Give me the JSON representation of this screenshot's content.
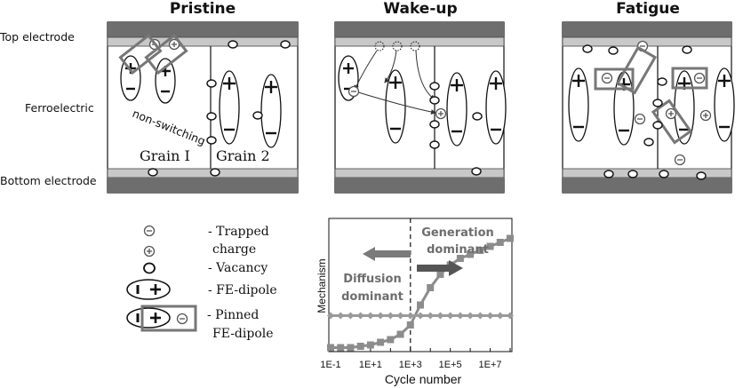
{
  "titles": {
    "pristine": "Pristine",
    "wakeup": "Wake-up",
    "fatigue": "Fatigue"
  },
  "side_labels": {
    "top": "Top electrode",
    "middle": "Ferroelectric",
    "bottom": "Bottom electrode"
  },
  "pristine": {
    "non_switching": "non-switching",
    "grain1": "Grain I",
    "grain2": "Grain 2"
  },
  "legend": {
    "trapped": "- Trapped",
    "charge": "charge",
    "vacancy": "- Vacancy",
    "fe_dipole": "- FE-dipole",
    "pinned": "- Pinned",
    "pinned2": "FE-dipole"
  },
  "chart_data": {
    "type": "line",
    "ylabel": "Mechanism",
    "xlabel": "Cycle number",
    "x_tick_labels": [
      "1E-1",
      "1E+1",
      "1E+3",
      "1E+5",
      "1E+7"
    ],
    "xlim": [
      -1,
      8
    ],
    "ylim": [
      0,
      1
    ],
    "divider_x": 3,
    "annotations": {
      "generation": "Generation",
      "generation2": "dominant",
      "diffusion": "Diffusion",
      "diffusion2": "dominant"
    },
    "series": [
      {
        "color": "#8c8c8c",
        "marker": "square",
        "x": [
          -1,
          -0.5,
          0,
          0.5,
          1,
          1.5,
          2,
          2.5,
          3,
          3.5,
          4,
          4.5,
          5,
          5.5,
          6,
          6.5,
          7,
          7.5,
          8
        ],
        "y": [
          0.03,
          0.03,
          0.03,
          0.04,
          0.05,
          0.07,
          0.09,
          0.13,
          0.2,
          0.35,
          0.48,
          0.58,
          0.65,
          0.7,
          0.73,
          0.76,
          0.79,
          0.82,
          0.85
        ]
      },
      {
        "color": "#9a9a9a",
        "marker": "diamond",
        "x": [
          -1,
          -0.5,
          0,
          0.5,
          1,
          1.5,
          2,
          2.5,
          3,
          3.5,
          4,
          4.5,
          5,
          5.5,
          6,
          6.5,
          7,
          7.5,
          8
        ],
        "y": [
          0.27,
          0.27,
          0.27,
          0.27,
          0.27,
          0.27,
          0.27,
          0.27,
          0.27,
          0.27,
          0.27,
          0.27,
          0.27,
          0.27,
          0.27,
          0.27,
          0.27,
          0.27,
          0.27
        ]
      }
    ]
  }
}
